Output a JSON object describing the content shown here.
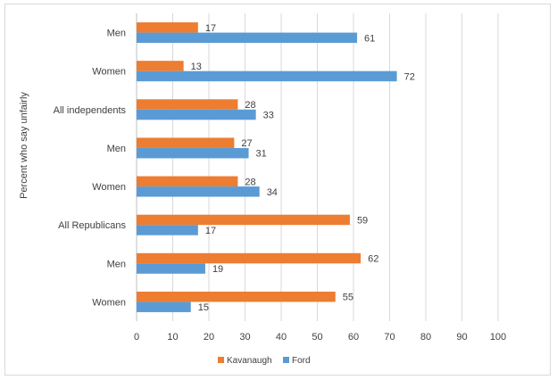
{
  "chart_data": {
    "type": "bar",
    "orientation": "horizontal",
    "ylabel": "Percent who say unfairly",
    "categories": [
      "Men",
      "Women",
      "All independents",
      "Men",
      "Women",
      "All Republicans",
      "Men",
      "Women"
    ],
    "series": [
      {
        "name": "Kavanaugh",
        "color": "#ed7d31",
        "values": [
          17,
          13,
          28,
          27,
          28,
          59,
          62,
          55
        ]
      },
      {
        "name": "Ford",
        "color": "#5b9bd5",
        "values": [
          61,
          72,
          33,
          31,
          34,
          17,
          19,
          15
        ]
      }
    ],
    "xlim": [
      0,
      100
    ],
    "xticks": [
      "0",
      "10",
      "20",
      "30",
      "40",
      "50",
      "60",
      "70",
      "80",
      "90",
      "100"
    ],
    "grid": true,
    "legend": "bottom"
  }
}
